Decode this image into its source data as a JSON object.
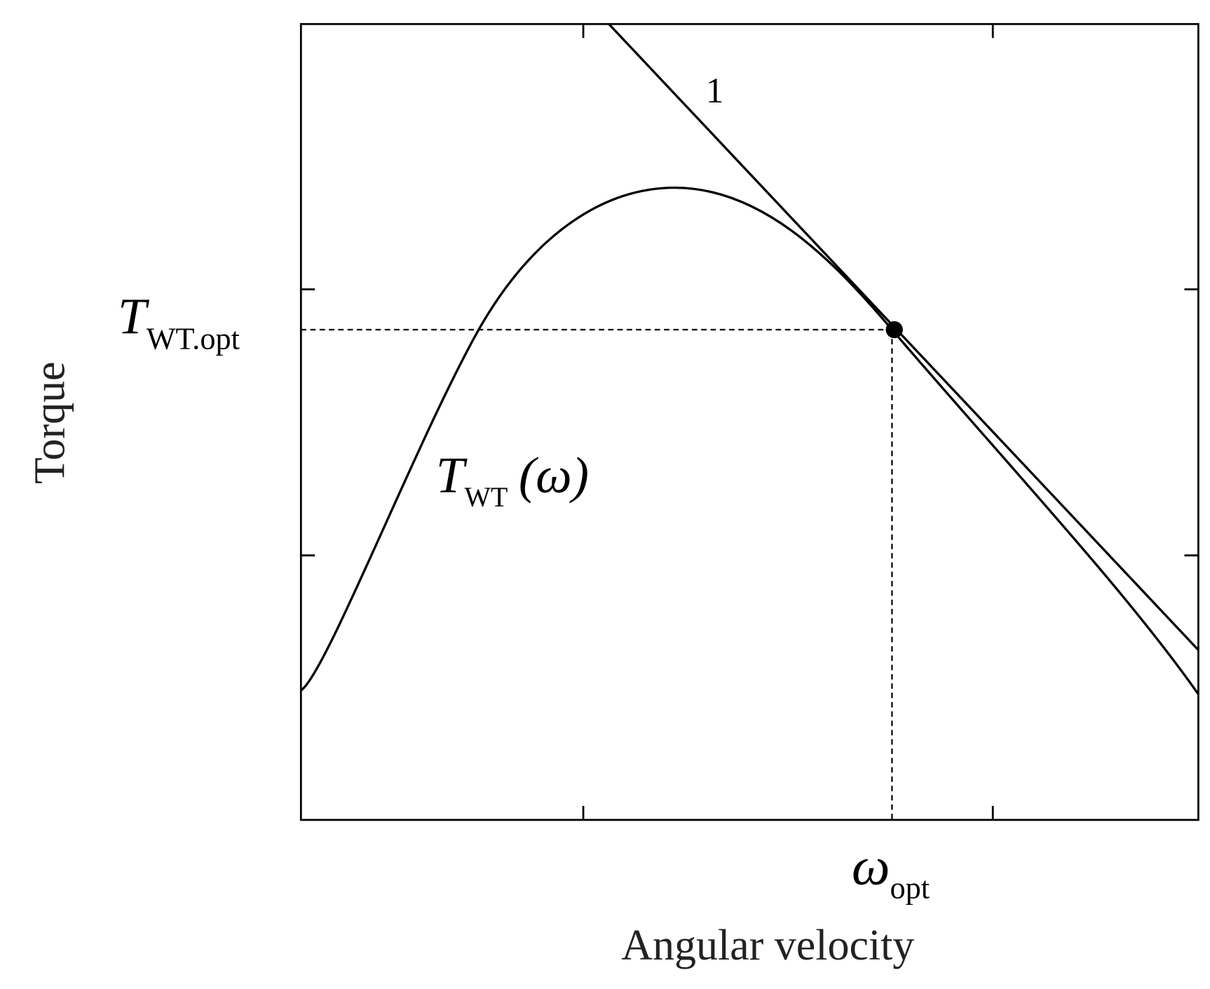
{
  "axes": {
    "x_label": "Angular velocity",
    "y_label": "Torque"
  },
  "annotations": {
    "t_opt": {
      "symbol": "T",
      "subscript": "WT.opt"
    },
    "omega_opt": {
      "symbol": "ω",
      "subscript": "opt"
    },
    "curve": {
      "symbol": "T",
      "subscript": "WT",
      "argument": "(ω)"
    },
    "line": "1"
  }
}
